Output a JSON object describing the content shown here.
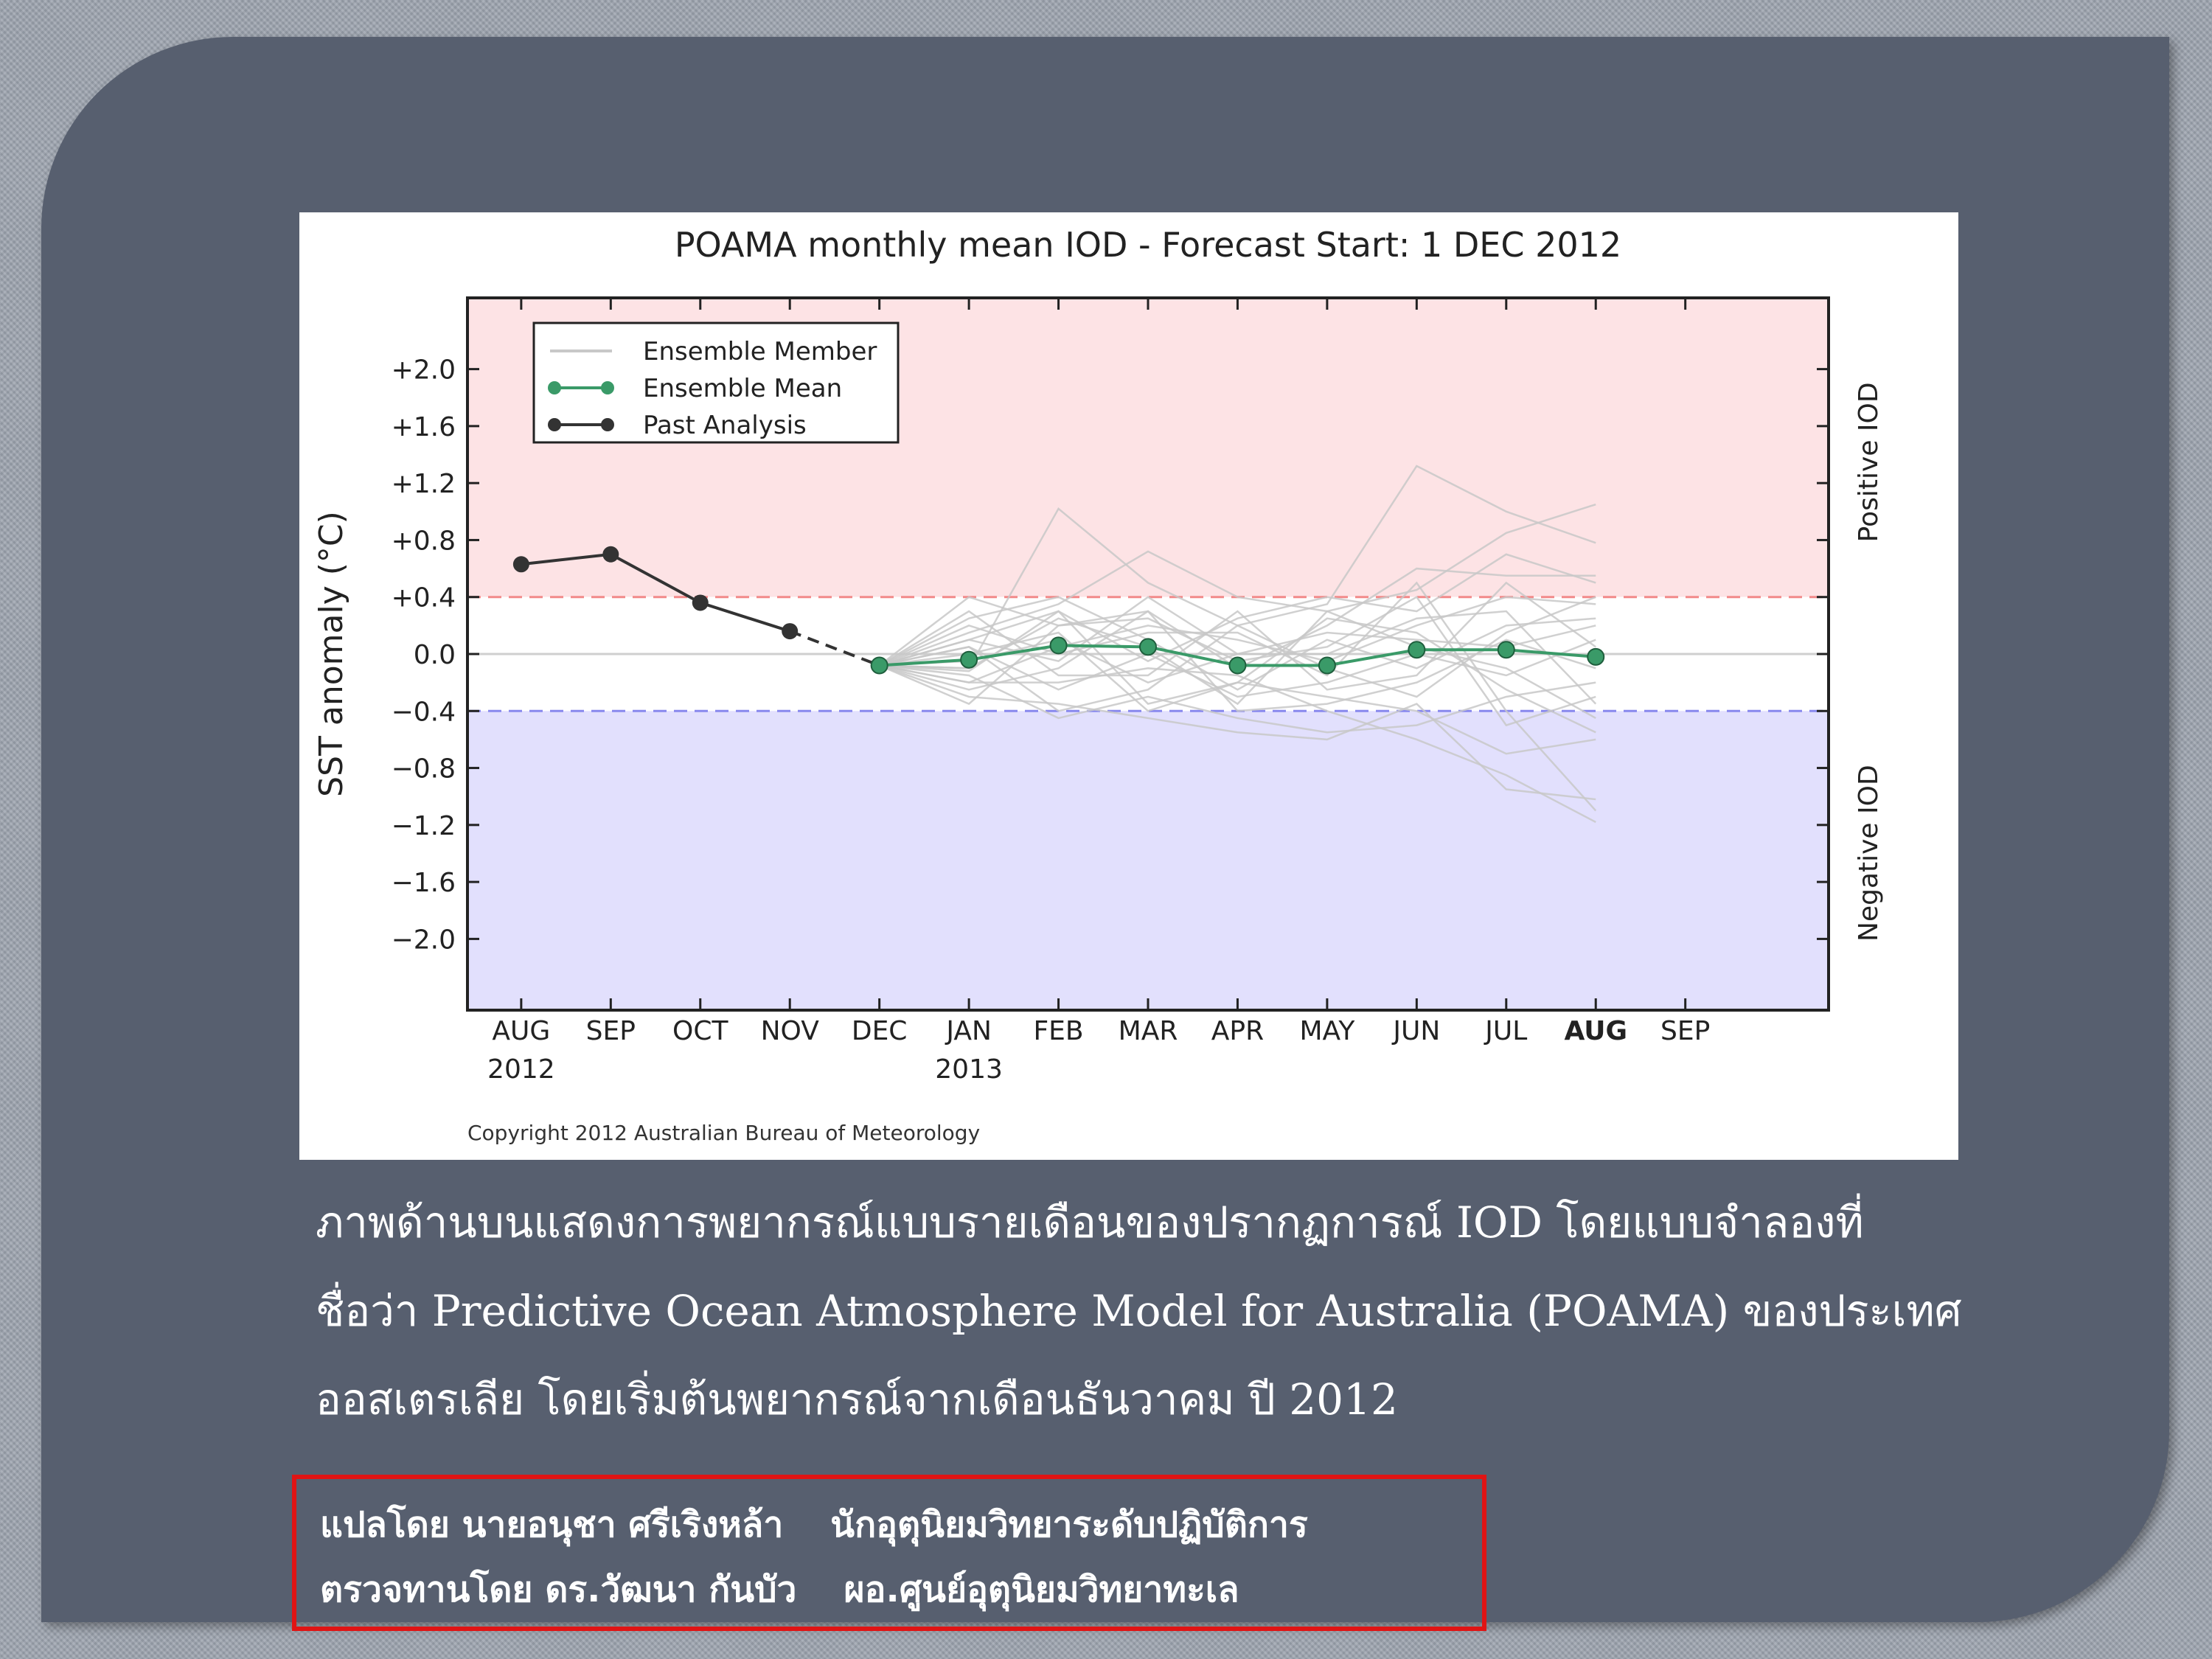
{
  "chart_data": {
    "type": "line",
    "title": "POAMA monthly mean IOD - Forecast Start: 1 DEC 2012",
    "ylabel": "SST anomaly (°C)",
    "xlabel": "",
    "x_ticks": [
      {
        "month": "AUG",
        "year": "2012"
      },
      {
        "month": "SEP",
        "year": ""
      },
      {
        "month": "OCT",
        "year": ""
      },
      {
        "month": "NOV",
        "year": ""
      },
      {
        "month": "DEC",
        "year": ""
      },
      {
        "month": "JAN",
        "year": "2013"
      },
      {
        "month": "FEB",
        "year": ""
      },
      {
        "month": "MAR",
        "year": ""
      },
      {
        "month": "APR",
        "year": ""
      },
      {
        "month": "MAY",
        "year": ""
      },
      {
        "month": "JUN",
        "year": ""
      },
      {
        "month": "JUL",
        "year": ""
      },
      {
        "month": "AUG",
        "year": ""
      },
      {
        "month": "SEP",
        "year": ""
      }
    ],
    "y_ticks": [
      "+2.0",
      "+1.6",
      "+1.2",
      "+0.8",
      "+0.4",
      "0.0",
      "−0.4",
      "−0.8",
      "−1.2",
      "−1.6",
      "−2.0"
    ],
    "y_tick_values": [
      2.0,
      1.6,
      1.2,
      0.8,
      0.4,
      0.0,
      -0.4,
      -0.8,
      -1.2,
      -1.6,
      -2.0
    ],
    "ylim": [
      -2.5,
      2.5
    ],
    "x_range": [
      -0.6,
      14.6
    ],
    "thresholds": {
      "positive": 0.4,
      "negative": -0.4
    },
    "region_labels": {
      "positive": "Positive IOD",
      "negative": "Negative IOD"
    },
    "legend": {
      "placement": "top-left",
      "entries": [
        "Ensemble Member",
        "Ensemble Mean",
        "Past Analysis"
      ]
    },
    "series": [
      {
        "name": "Past Analysis",
        "x": [
          0,
          1,
          2,
          3
        ],
        "values": [
          0.63,
          0.7,
          0.36,
          0.16
        ]
      },
      {
        "name": "Ensemble Mean",
        "x": [
          4,
          5,
          6,
          7,
          8,
          9,
          10,
          11,
          12
        ],
        "values": [
          -0.08,
          -0.04,
          0.06,
          0.05,
          -0.08,
          -0.08,
          0.03,
          0.03,
          -0.02
        ]
      }
    ],
    "ensemble_members": [
      [
        -0.08,
        -0.1,
        1.02,
        0.5,
        0.2,
        0.35,
        1.32,
        1.0,
        0.78
      ],
      [
        -0.08,
        0.15,
        0.35,
        0.72,
        0.4,
        0.3,
        0.45,
        0.85,
        1.05
      ],
      [
        -0.08,
        0.4,
        0.2,
        0.3,
        -0.1,
        0.2,
        0.6,
        0.55,
        0.55
      ],
      [
        -0.08,
        0.1,
        0.3,
        -0.05,
        0.25,
        0.4,
        0.3,
        0.7,
        0.5
      ],
      [
        -0.08,
        -0.2,
        0.05,
        0.2,
        0.1,
        -0.05,
        0.2,
        0.4,
        0.35
      ],
      [
        -0.08,
        0.25,
        0.4,
        0.1,
        -0.25,
        0.1,
        -0.1,
        0.2,
        0.25
      ],
      [
        -0.08,
        -0.05,
        0.1,
        -0.2,
        0.0,
        0.15,
        0.1,
        0.05,
        0.2
      ],
      [
        -0.08,
        0.05,
        -0.25,
        0.0,
        -0.3,
        -0.2,
        0.0,
        -0.15,
        0.1
      ],
      [
        -0.08,
        -0.25,
        -0.1,
        0.3,
        -0.4,
        -0.35,
        -0.2,
        0.1,
        -0.1
      ],
      [
        -0.08,
        -0.15,
        -0.45,
        -0.3,
        -0.45,
        -0.55,
        -0.5,
        -0.3,
        -0.2
      ],
      [
        -0.08,
        0.0,
        0.15,
        -0.4,
        -0.2,
        -0.3,
        -0.4,
        -0.7,
        -0.6
      ],
      [
        -0.08,
        -0.3,
        -0.35,
        -0.45,
        -0.55,
        -0.6,
        -0.35,
        -0.95,
        -1.02
      ],
      [
        -0.08,
        0.2,
        0.0,
        0.15,
        0.15,
        -0.15,
        0.5,
        -0.4,
        -1.1
      ],
      [
        -0.08,
        -0.2,
        -0.2,
        -0.1,
        -0.15,
        -0.4,
        -0.6,
        -0.85,
        -1.18
      ],
      [
        -0.08,
        0.1,
        -0.05,
        0.4,
        0.0,
        0.0,
        0.25,
        0.3,
        -0.35
      ],
      [
        -0.08,
        -0.1,
        0.25,
        0.05,
        -0.35,
        0.3,
        0.05,
        -0.1,
        -0.45
      ],
      [
        -0.08,
        0.3,
        -0.15,
        -0.15,
        0.3,
        -0.25,
        -0.15,
        0.5,
        0.05
      ],
      [
        -0.08,
        -0.35,
        0.2,
        0.25,
        -0.05,
        0.05,
        0.4,
        -0.5,
        -0.3
      ],
      [
        -0.08,
        0.05,
        -0.4,
        -0.25,
        0.2,
        -0.1,
        -0.3,
        0.15,
        0.4
      ],
      [
        -0.08,
        -0.12,
        0.3,
        -0.35,
        -0.2,
        0.25,
        0.15,
        -0.25,
        -0.55
      ]
    ],
    "copyright": "Copyright 2012 Australian Bureau of Meteorology",
    "colors": {
      "positive_band": "#fde3e5",
      "negative_band": "#e2e0fd",
      "positive_line": "#f28a8a",
      "negative_line": "#8888ee",
      "ensemble_member": "#c8c8c8",
      "ensemble_mean": "#3a9a68",
      "past_analysis": "#333333"
    }
  },
  "caption_lines": [
    "ภาพด้านบนแสดงการพยากรณ์แบบรายเดือนของปรากฏการณ์ IOD โดยแบบจำลองที่",
    "ชื่อว่า Predictive Ocean Atmosphere Model for Australia (POAMA) ของประเทศ",
    "ออสเตรเลีย โดยเริ่มต้นพยากรณ์จากเดือนธันวาคม ปี 2012"
  ],
  "credits": {
    "translator_name": "แปลโดย นายอนุชา ศรีเริงหล้า",
    "translator_title": "นักอุตุนิยมวิทยาระดับปฏิบัติการ",
    "reviewer_name": "ตรวจทานโดย ดร.วัฒนา กันบัว",
    "reviewer_title": "ผอ.ศูนย์อุตุนิยมวิทยาทะเล"
  },
  "colors": {
    "slide_background": "#575f6f",
    "credits_border": "#e01414"
  }
}
